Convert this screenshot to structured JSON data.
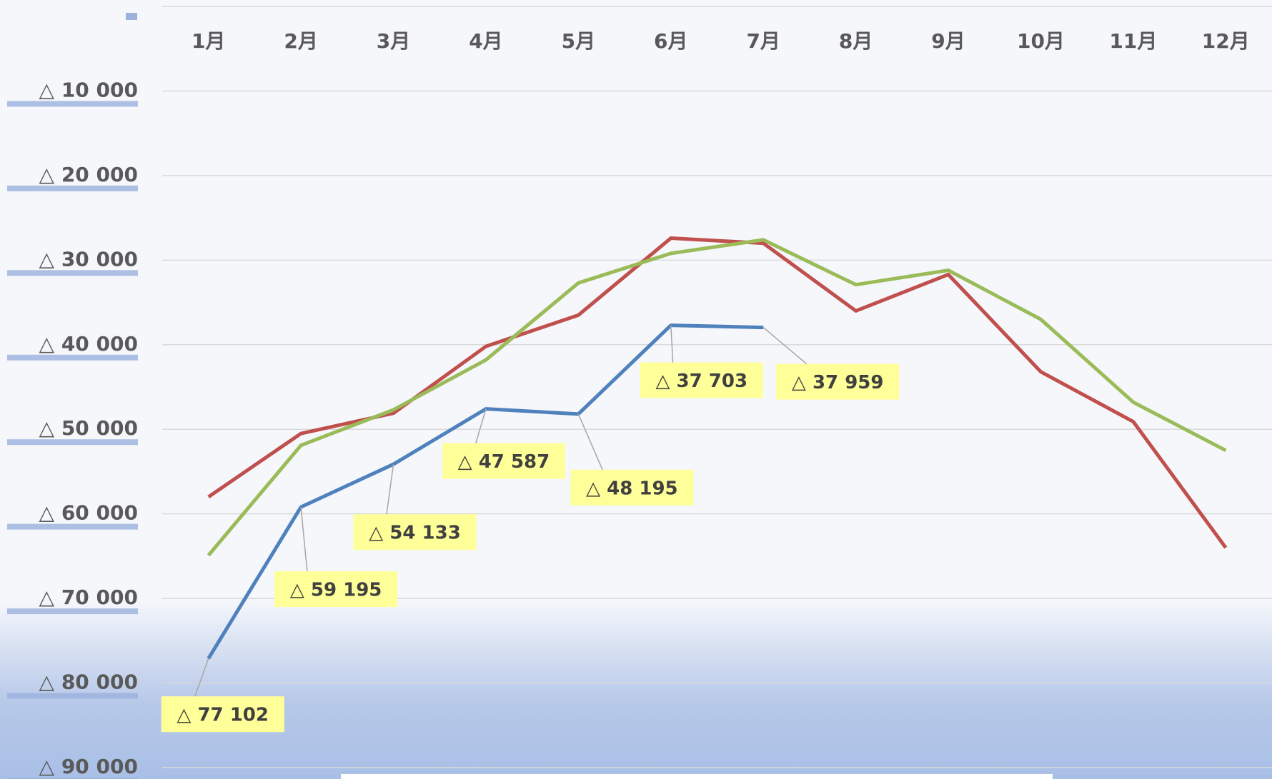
{
  "chart_data": {
    "type": "line",
    "categories": [
      "1月",
      "2月",
      "3月",
      "4月",
      "5月",
      "6月",
      "7月",
      "8月",
      "9月",
      "10月",
      "11月",
      "12月"
    ],
    "series": [
      {
        "color": "#4f81bd",
        "values": [
          -77102,
          -59195,
          -54133,
          -47587,
          -48195,
          -37703,
          -37959,
          null,
          null,
          null,
          null,
          null
        ],
        "value_labels": [
          "△ 77 102",
          "△ 59 195",
          "△ 54 133",
          "△ 47 587",
          "△ 48 195",
          "△ 37 703",
          "△ 37 959",
          null,
          null,
          null,
          null,
          null
        ]
      },
      {
        "color": "#c0504d",
        "values": [
          -58000,
          -50500,
          -48100,
          -40200,
          -36500,
          -27400,
          -28000,
          -36000,
          -31700,
          -43200,
          -49100,
          -64000
        ]
      },
      {
        "color": "#9bbb59",
        "values": [
          -64900,
          -51900,
          -47700,
          -41800,
          -32700,
          -29200,
          -27600,
          -32900,
          -31200,
          -37000,
          -46800,
          -52500
        ]
      }
    ],
    "ylim": [
      -90000,
      0
    ],
    "yticks": [
      {
        "value": -10000,
        "label": "△ 10 000"
      },
      {
        "value": -20000,
        "label": "△ 20 000"
      },
      {
        "value": -30000,
        "label": "△ 30 000"
      },
      {
        "value": -40000,
        "label": "△ 40 000"
      },
      {
        "value": -50000,
        "label": "△ 50 000"
      },
      {
        "value": -60000,
        "label": "△ 60 000"
      },
      {
        "value": -70000,
        "label": "△ 70 000"
      },
      {
        "value": -80000,
        "label": "△ 80 000"
      },
      {
        "value": -90000,
        "label": "△ 90 000"
      }
    ],
    "grid": true
  }
}
